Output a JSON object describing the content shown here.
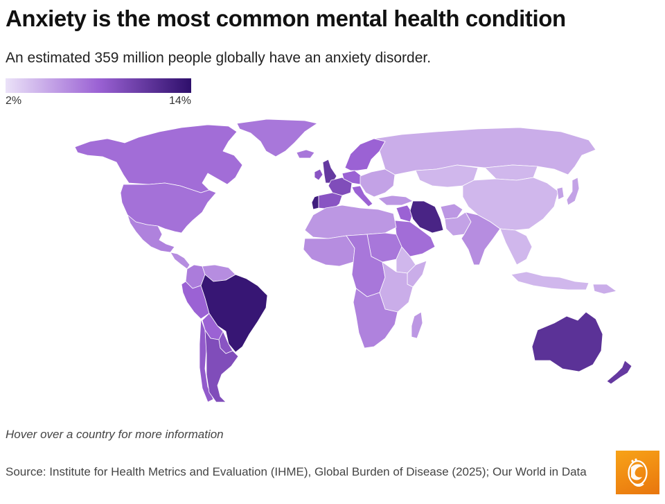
{
  "header": {
    "title": "Anxiety is the most common mental health condition",
    "subtitle": "An estimated 359 million people globally have an anxiety disorder."
  },
  "legend": {
    "min_label": "2%",
    "max_label": "14%",
    "min_value": 2,
    "max_value": 14,
    "colors": {
      "min": "#ebe2f8",
      "mid": "#9b62d4",
      "max": "#2e0f6b"
    }
  },
  "map_data": {
    "metric": "Share of population with an anxiety disorder (%)",
    "regions": [
      {
        "name": "Canada",
        "value": 7.5
      },
      {
        "name": "United States",
        "value": 7.3
      },
      {
        "name": "Mexico",
        "value": 6.5
      },
      {
        "name": "Central America",
        "value": 6.0
      },
      {
        "name": "Colombia",
        "value": 6.8
      },
      {
        "name": "Venezuela",
        "value": 6.0
      },
      {
        "name": "Peru",
        "value": 8.0
      },
      {
        "name": "Brazil",
        "value": 13.5
      },
      {
        "name": "Bolivia",
        "value": 8.0
      },
      {
        "name": "Paraguay",
        "value": 9.0
      },
      {
        "name": "Argentina",
        "value": 9.5
      },
      {
        "name": "Chile",
        "value": 8.5
      },
      {
        "name": "Greenland",
        "value": 7.0
      },
      {
        "name": "Iceland",
        "value": 7.0
      },
      {
        "name": "United Kingdom",
        "value": 11.0
      },
      {
        "name": "Ireland",
        "value": 9.0
      },
      {
        "name": "Portugal",
        "value": 13.0
      },
      {
        "name": "Spain",
        "value": 9.0
      },
      {
        "name": "France",
        "value": 9.5
      },
      {
        "name": "Germany",
        "value": 8.0
      },
      {
        "name": "Scandinavia",
        "value": 8.0
      },
      {
        "name": "Italy",
        "value": 8.0
      },
      {
        "name": "Eastern Europe",
        "value": 5.0
      },
      {
        "name": "Russia",
        "value": 4.5
      },
      {
        "name": "Turkey",
        "value": 5.5
      },
      {
        "name": "Kazakhstan",
        "value": 4.0
      },
      {
        "name": "Iran",
        "value": 12.5
      },
      {
        "name": "Iraq",
        "value": 8.0
      },
      {
        "name": "Saudi Arabia",
        "value": 7.5
      },
      {
        "name": "Afghanistan",
        "value": 5.5
      },
      {
        "name": "Pakistan",
        "value": 5.0
      },
      {
        "name": "India",
        "value": 6.0
      },
      {
        "name": "China",
        "value": 4.0
      },
      {
        "name": "Mongolia",
        "value": 4.0
      },
      {
        "name": "Japan",
        "value": 5.0
      },
      {
        "name": "Korea",
        "value": 5.0
      },
      {
        "name": "Southeast Asia",
        "value": 4.0
      },
      {
        "name": "Indonesia",
        "value": 4.0
      },
      {
        "name": "Papua New Guinea",
        "value": 4.5
      },
      {
        "name": "North Africa",
        "value": 5.5
      },
      {
        "name": "West Africa",
        "value": 6.0
      },
      {
        "name": "Central Africa",
        "value": 7.0
      },
      {
        "name": "Sudan",
        "value": 7.0
      },
      {
        "name": "Ethiopia",
        "value": 4.0
      },
      {
        "name": "Somalia",
        "value": 4.5
      },
      {
        "name": "East Africa",
        "value": 4.5
      },
      {
        "name": "Southern Africa",
        "value": 6.5
      },
      {
        "name": "Madagascar",
        "value": 5.5
      },
      {
        "name": "Australia",
        "value": 11.5
      },
      {
        "name": "New Zealand",
        "value": 11.0
      }
    ]
  },
  "footer": {
    "hint": "Hover over a country for more information",
    "source": "Source: Institute for Health Metrics and Evaluation (IHME), Global Burden of Disease (2025); Our World in Data"
  }
}
